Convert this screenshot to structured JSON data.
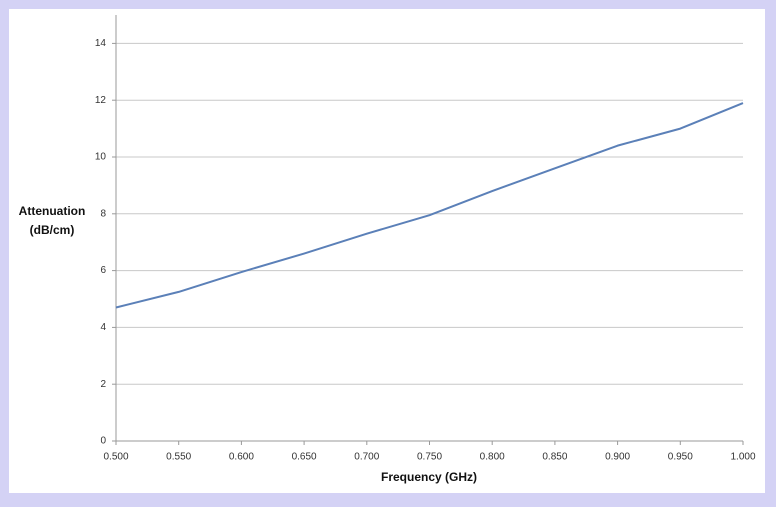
{
  "chart_data": {
    "type": "line",
    "xlabel": "Frequency (GHz)",
    "ylabel": [
      "Attenuation",
      "(dB/cm)"
    ],
    "x": [
      0.5,
      0.55,
      0.6,
      0.65,
      0.7,
      0.75,
      0.8,
      0.85,
      0.9,
      0.95,
      1.0
    ],
    "series": [
      {
        "color": "#5b80b8",
        "values": [
          4.7,
          5.25,
          5.95,
          6.6,
          7.3,
          7.95,
          8.8,
          9.6,
          10.4,
          11.0,
          11.9
        ]
      }
    ],
    "xlim": [
      0.5,
      1.0
    ],
    "xticks": [
      {
        "value": 0.5,
        "label": "0.500"
      },
      {
        "value": 0.55,
        "label": "0.550"
      },
      {
        "value": 0.6,
        "label": "0.600"
      },
      {
        "value": 0.65,
        "label": "0.650"
      },
      {
        "value": 0.7,
        "label": "0.700"
      },
      {
        "value": 0.75,
        "label": "0.750"
      },
      {
        "value": 0.8,
        "label": "0.800"
      },
      {
        "value": 0.85,
        "label": "0.850"
      },
      {
        "value": 0.9,
        "label": "0.900"
      },
      {
        "value": 0.95,
        "label": "0.950"
      },
      {
        "value": 1.0,
        "label": "1.000"
      }
    ],
    "ylim": [
      0,
      15
    ],
    "yticks": [
      0,
      2,
      4,
      6,
      8,
      10,
      12,
      14
    ],
    "grid": true
  }
}
